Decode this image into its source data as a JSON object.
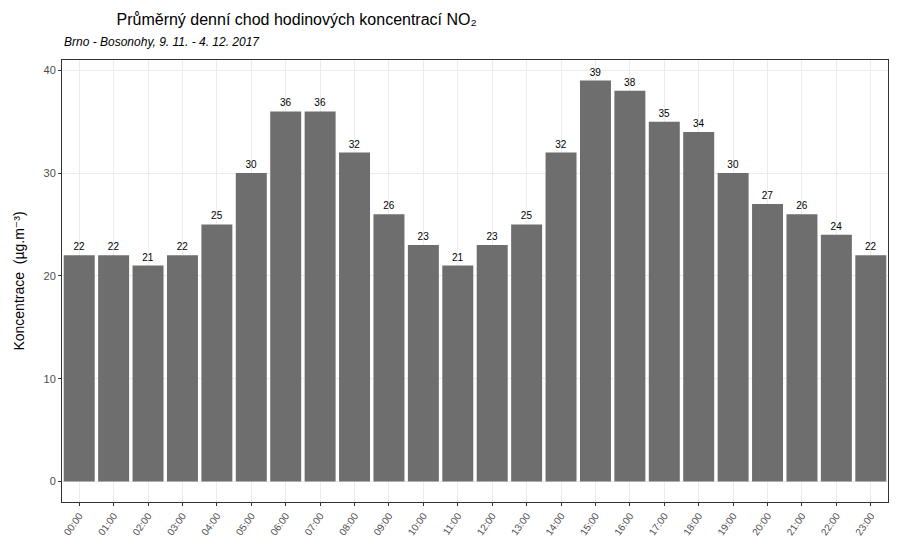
{
  "chart_data": {
    "type": "bar",
    "title": "Průměrný denní chod hodinových koncentrací NO₂",
    "subtitle": "Brno - Bosonohy, 9. 11. - 4. 12. 2017",
    "y_label": "Koncentrace  (µg.m⁻³)",
    "categories": [
      "00:00",
      "01:00",
      "02:00",
      "03:00",
      "04:00",
      "05:00",
      "06:00",
      "07:00",
      "08:00",
      "09:00",
      "10:00",
      "11:00",
      "12:00",
      "13:00",
      "14:00",
      "15:00",
      "16:00",
      "17:00",
      "18:00",
      "19:00",
      "20:00",
      "21:00",
      "22:00",
      "23:00"
    ],
    "values": [
      22,
      22,
      21,
      22,
      25,
      30,
      36,
      36,
      32,
      26,
      23,
      21,
      23,
      25,
      32,
      39,
      38,
      35,
      34,
      30,
      27,
      26,
      24,
      22
    ],
    "color": "#6e6e6e",
    "ylim": [
      -2,
      41
    ],
    "yticks": [
      0,
      10,
      20,
      30,
      40
    ],
    "grid": true,
    "data_labels": true
  }
}
